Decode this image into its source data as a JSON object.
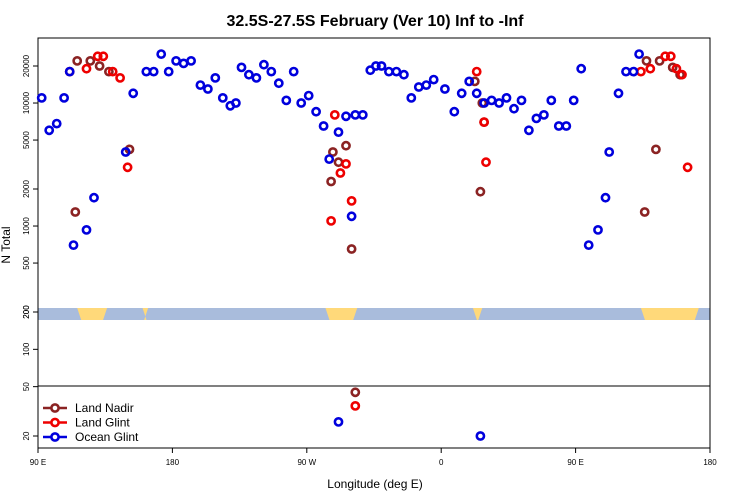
{
  "chart_data": {
    "type": "scatter",
    "title": "32.5S-27.5S February (Ver 10)   Inf to -Inf",
    "xlabel": "Longitude (deg E)",
    "ylabel": "N Total",
    "x_axis_order": "-90 at left increasing to 270 (90 E, 180, 90 W, 0, 90 E, 180)",
    "xlim": [
      -90,
      270
    ],
    "x_ticks": [
      {
        "value": -90,
        "label": "90 E"
      },
      {
        "value": -18,
        "label": "180"
      },
      {
        "value": 54,
        "label": "90 W"
      },
      {
        "value": 126,
        "label": "0"
      },
      {
        "value": 198,
        "label": "90 E"
      },
      {
        "value": 270,
        "label": "180"
      }
    ],
    "y_scale": "log, broken axis (upper panel 200 to 40000, lower panel 15 to 200)",
    "y_ticks_upper": [
      "200",
      "500",
      "1000",
      "2000",
      "5000",
      "10000",
      "20000"
    ],
    "y_ticks_lower": [
      "20",
      "50",
      "100",
      "200"
    ],
    "land_band_note": "strip at y=200 colored by surface: blue = ocean, yellow = land",
    "land_band_land_segments": [
      [
        -69,
        -53
      ],
      [
        -34,
        -31
      ],
      [
        64,
        81
      ],
      [
        143,
        148
      ],
      [
        233,
        264
      ]
    ],
    "legend": [
      {
        "label": "Land Nadir",
        "color": "#8b2323"
      },
      {
        "label": "Land Glint",
        "color": "#ee0000"
      },
      {
        "label": "Ocean Glint",
        "color": "#0000dd"
      }
    ],
    "series": [
      {
        "name": "Land Nadir",
        "color": "#8b2323",
        "points": [
          [
            -69,
            22000
          ],
          [
            -62,
            22000
          ],
          [
            -57,
            20000
          ],
          [
            -52,
            18000
          ],
          [
            -41,
            4200
          ],
          [
            -70,
            1300
          ],
          [
            68,
            4000
          ],
          [
            71,
            3300
          ],
          [
            75,
            4500
          ],
          [
            78,
            650
          ],
          [
            67,
            2300
          ],
          [
            144,
            15000
          ],
          [
            148,
            10000
          ],
          [
            149,
            7000
          ],
          [
            147,
            1900
          ],
          [
            236,
            22000
          ],
          [
            243,
            22000
          ],
          [
            250,
            19500
          ],
          [
            254,
            17000
          ],
          [
            241,
            4200
          ],
          [
            235,
            1300
          ],
          [
            80,
            45
          ]
        ]
      },
      {
        "name": "Land Glint",
        "color": "#ee0000",
        "points": [
          [
            -73,
            18000
          ],
          [
            -64,
            19000
          ],
          [
            -58,
            24000
          ],
          [
            -55,
            24000
          ],
          [
            -50,
            18000
          ],
          [
            -46,
            16000
          ],
          [
            -42,
            3000
          ],
          [
            69,
            8000
          ],
          [
            72,
            2700
          ],
          [
            75,
            3200
          ],
          [
            78,
            1600
          ],
          [
            67,
            1100
          ],
          [
            145,
            18000
          ],
          [
            149,
            7000
          ],
          [
            150,
            3300
          ],
          [
            233,
            18000
          ],
          [
            238,
            19000
          ],
          [
            246,
            24000
          ],
          [
            249,
            24000
          ],
          [
            252,
            19000
          ],
          [
            255,
            17000
          ],
          [
            258,
            3000
          ],
          [
            80,
            35
          ]
        ]
      },
      {
        "name": "Ocean Glint",
        "color": "#0000dd",
        "points": [
          [
            -88,
            11000
          ],
          [
            -84,
            6000
          ],
          [
            -80,
            6800
          ],
          [
            -76,
            11000
          ],
          [
            -73,
            18000
          ],
          [
            -71,
            700
          ],
          [
            -64,
            930
          ],
          [
            -60,
            1700
          ],
          [
            -43,
            4000
          ],
          [
            -39,
            12000
          ],
          [
            -32,
            18000
          ],
          [
            -28,
            18000
          ],
          [
            -24,
            25000
          ],
          [
            -20,
            18000
          ],
          [
            -16,
            22000
          ],
          [
            -12,
            21000
          ],
          [
            -8,
            22000
          ],
          [
            -3,
            14000
          ],
          [
            1,
            13000
          ],
          [
            5,
            16000
          ],
          [
            9,
            11000
          ],
          [
            13,
            9500
          ],
          [
            16,
            10000
          ],
          [
            19,
            19500
          ],
          [
            23,
            17000
          ],
          [
            27,
            16000
          ],
          [
            31,
            20500
          ],
          [
            35,
            18000
          ],
          [
            39,
            14500
          ],
          [
            43,
            10500
          ],
          [
            47,
            18000
          ],
          [
            51,
            10000
          ],
          [
            55,
            11500
          ],
          [
            59,
            8500
          ],
          [
            63,
            6500
          ],
          [
            66,
            3500
          ],
          [
            71,
            5800
          ],
          [
            75,
            7800
          ],
          [
            80,
            8000
          ],
          [
            84,
            8000
          ],
          [
            88,
            18500
          ],
          [
            91,
            20000
          ],
          [
            94,
            20000
          ],
          [
            98,
            18000
          ],
          [
            102,
            18000
          ],
          [
            106,
            17000
          ],
          [
            110,
            11000
          ],
          [
            114,
            13500
          ],
          [
            118,
            14000
          ],
          [
            122,
            15500
          ],
          [
            128,
            13000
          ],
          [
            133,
            8500
          ],
          [
            137,
            12000
          ],
          [
            141,
            15000
          ],
          [
            145,
            12000
          ],
          [
            149,
            10000
          ],
          [
            153,
            10500
          ],
          [
            157,
            10000
          ],
          [
            161,
            11000
          ],
          [
            165,
            9000
          ],
          [
            169,
            10500
          ],
          [
            173,
            6000
          ],
          [
            177,
            7500
          ],
          [
            181,
            8000
          ],
          [
            185,
            10500
          ],
          [
            189,
            6500
          ],
          [
            193,
            6500
          ],
          [
            197,
            10500
          ],
          [
            201,
            19000
          ],
          [
            205,
            700
          ],
          [
            210,
            930
          ],
          [
            214,
            1700
          ],
          [
            216,
            4000
          ],
          [
            221,
            12000
          ],
          [
            225,
            18000
          ],
          [
            229,
            18000
          ],
          [
            232,
            25000
          ],
          [
            78,
            1200
          ],
          [
            71,
            26
          ],
          [
            147,
            20
          ]
        ]
      }
    ]
  }
}
